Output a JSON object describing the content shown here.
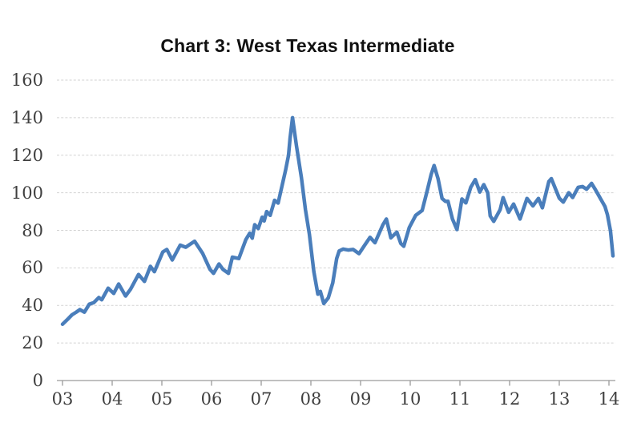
{
  "page": {
    "background_color": "#ffffff"
  },
  "chart_data": {
    "type": "line",
    "title": "Chart 3: West Texas Intermediate",
    "xlabel": "",
    "ylabel": "",
    "ylim": [
      0,
      160
    ],
    "y_ticks": [
      0,
      20,
      40,
      60,
      80,
      100,
      120,
      140,
      160
    ],
    "x_tick_labels": [
      "03",
      "04",
      "05",
      "06",
      "07",
      "08",
      "09",
      "10",
      "11",
      "12",
      "13",
      "14"
    ],
    "x_tick_values": [
      3,
      4,
      5,
      6,
      7,
      8,
      9,
      10,
      11,
      12,
      13,
      14
    ],
    "grid": "horizontal-dashed",
    "legend": "none",
    "colors": {
      "line": "#4a7ebb",
      "gridline": "#d2d2d2",
      "axis": "#9a9a9a",
      "tick_label": "#3f3f3f",
      "title": "#111111"
    },
    "series": [
      {
        "name": "West Texas Intermediate crude oil price (USD per barrel)",
        "color": "#4a7ebb",
        "points": [
          [
            3.0,
            30.0
          ],
          [
            3.1,
            32.5
          ],
          [
            3.19,
            35.0
          ],
          [
            3.28,
            36.5
          ],
          [
            3.35,
            37.8
          ],
          [
            3.44,
            36.4
          ],
          [
            3.54,
            40.7
          ],
          [
            3.63,
            41.5
          ],
          [
            3.73,
            44.2
          ],
          [
            3.79,
            43.0
          ],
          [
            3.92,
            49.2
          ],
          [
            4.03,
            46.4
          ],
          [
            4.13,
            51.4
          ],
          [
            4.27,
            45.0
          ],
          [
            4.37,
            48.6
          ],
          [
            4.53,
            56.5
          ],
          [
            4.65,
            52.8
          ],
          [
            4.77,
            60.8
          ],
          [
            4.85,
            58.0
          ],
          [
            5.02,
            68.5
          ],
          [
            5.1,
            69.8
          ],
          [
            5.21,
            64.2
          ],
          [
            5.37,
            72.1
          ],
          [
            5.48,
            71.0
          ],
          [
            5.56,
            72.4
          ],
          [
            5.66,
            74.2
          ],
          [
            5.82,
            67.8
          ],
          [
            5.97,
            59.2
          ],
          [
            6.04,
            57.1
          ],
          [
            6.15,
            62.1
          ],
          [
            6.23,
            59.2
          ],
          [
            6.34,
            57.1
          ],
          [
            6.42,
            65.7
          ],
          [
            6.55,
            65.0
          ],
          [
            6.69,
            75.0
          ],
          [
            6.77,
            78.5
          ],
          [
            6.82,
            75.8
          ],
          [
            6.87,
            83.0
          ],
          [
            6.94,
            81.0
          ],
          [
            7.02,
            87.0
          ],
          [
            7.06,
            85.0
          ],
          [
            7.11,
            90.0
          ],
          [
            7.18,
            88.0
          ],
          [
            7.27,
            96.0
          ],
          [
            7.34,
            94.5
          ],
          [
            7.49,
            112.0
          ],
          [
            7.55,
            120.0
          ],
          [
            7.58,
            129.0
          ],
          [
            7.63,
            140.0
          ],
          [
            7.71,
            125.0
          ],
          [
            7.81,
            108.0
          ],
          [
            7.89,
            91.0
          ],
          [
            7.97,
            78.0
          ],
          [
            8.06,
            58.0
          ],
          [
            8.14,
            46.0
          ],
          [
            8.19,
            47.5
          ],
          [
            8.26,
            41.0
          ],
          [
            8.35,
            44.0
          ],
          [
            8.44,
            52.0
          ],
          [
            8.52,
            65.0
          ],
          [
            8.57,
            69.0
          ],
          [
            8.65,
            70.0
          ],
          [
            8.75,
            69.5
          ],
          [
            8.85,
            69.8
          ],
          [
            8.97,
            67.6
          ],
          [
            9.08,
            72.0
          ],
          [
            9.19,
            76.3
          ],
          [
            9.29,
            73.4
          ],
          [
            9.45,
            83.0
          ],
          [
            9.52,
            86.0
          ],
          [
            9.61,
            76.0
          ],
          [
            9.73,
            79.0
          ],
          [
            9.81,
            73.0
          ],
          [
            9.87,
            71.5
          ],
          [
            9.98,
            81.5
          ],
          [
            10.11,
            88.0
          ],
          [
            10.24,
            90.6
          ],
          [
            10.34,
            101.0
          ],
          [
            10.42,
            109.6
          ],
          [
            10.48,
            114.5
          ],
          [
            10.56,
            107.5
          ],
          [
            10.64,
            97.0
          ],
          [
            10.71,
            95.4
          ],
          [
            10.76,
            95.5
          ],
          [
            10.85,
            86.0
          ],
          [
            10.94,
            80.4
          ],
          [
            11.04,
            96.7
          ],
          [
            11.12,
            94.6
          ],
          [
            11.22,
            103.0
          ],
          [
            11.31,
            107.0
          ],
          [
            11.4,
            100.4
          ],
          [
            11.48,
            104.3
          ],
          [
            11.56,
            100.0
          ],
          [
            11.61,
            87.7
          ],
          [
            11.68,
            84.8
          ],
          [
            11.81,
            91.0
          ],
          [
            11.87,
            97.4
          ],
          [
            11.98,
            89.6
          ],
          [
            12.08,
            94.0
          ],
          [
            12.21,
            86.0
          ],
          [
            12.35,
            97.0
          ],
          [
            12.47,
            93.0
          ],
          [
            12.58,
            97.0
          ],
          [
            12.66,
            92.0
          ],
          [
            12.79,
            106.0
          ],
          [
            12.84,
            107.5
          ],
          [
            13.0,
            97.1
          ],
          [
            13.08,
            95.0
          ],
          [
            13.19,
            100.0
          ],
          [
            13.27,
            97.5
          ],
          [
            13.38,
            102.9
          ],
          [
            13.47,
            103.3
          ],
          [
            13.55,
            101.9
          ],
          [
            13.65,
            105.0
          ],
          [
            13.73,
            101.5
          ],
          [
            13.84,
            96.4
          ],
          [
            13.92,
            92.7
          ],
          [
            13.97,
            88.3
          ],
          [
            14.03,
            79.7
          ],
          [
            14.08,
            66.4
          ]
        ]
      }
    ]
  }
}
